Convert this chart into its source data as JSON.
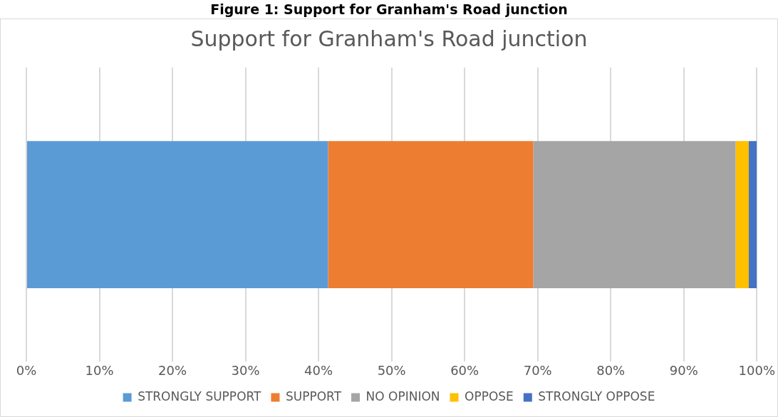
{
  "chart_data": {
    "type": "bar",
    "orientation": "horizontal",
    "stacked": true,
    "title": "Support for Granham's Road junction",
    "annotations": [
      "Figure 1: Support for Granham's Road junction"
    ],
    "categories": [
      null
    ],
    "series": [
      {
        "name": "STRONGLY SUPPORT",
        "color": "#5b9bd5",
        "values": [
          41.3
        ]
      },
      {
        "name": "SUPPORT",
        "color": "#ed7d31",
        "values": [
          28.1
        ]
      },
      {
        "name": "NO OPINION",
        "color": "#a5a5a5",
        "values": [
          27.7
        ]
      },
      {
        "name": "OPPOSE",
        "color": "#ffc000",
        "values": [
          1.8
        ]
      },
      {
        "name": "STRONGLY OPPOSE",
        "color": "#4472c4",
        "values": [
          1.1
        ]
      }
    ],
    "xlim": [
      0,
      100
    ],
    "xticks": [
      {
        "value": 0,
        "label": "0%"
      },
      {
        "value": 10,
        "label": "10%"
      },
      {
        "value": 20,
        "label": "20%"
      },
      {
        "value": 30,
        "label": "30%"
      },
      {
        "value": 40,
        "label": "40%"
      },
      {
        "value": 50,
        "label": "50%"
      },
      {
        "value": 60,
        "label": "60%"
      },
      {
        "value": 70,
        "label": "70%"
      },
      {
        "value": 80,
        "label": "80%"
      },
      {
        "value": 90,
        "label": "90%"
      },
      {
        "value": 100,
        "label": "100%"
      }
    ],
    "grid": "x",
    "legend": "bottom"
  }
}
